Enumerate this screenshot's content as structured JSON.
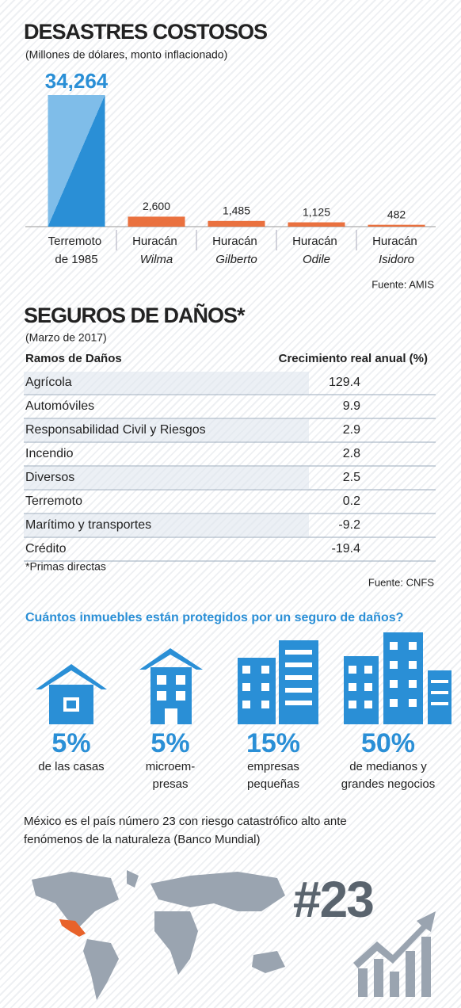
{
  "chart_data": {
    "type": "bar",
    "title": "DESASTRES COSTOSOS",
    "subtitle": "(Millones de dólares, monto inflacionado)",
    "categories": [
      "Terremoto de 1985",
      "Huracán Wilma",
      "Huracán Gilberto",
      "Huracán Odile",
      "Huracán Isidoro"
    ],
    "values": [
      34264,
      2600,
      1485,
      1125,
      482
    ],
    "value_labels": [
      "34,264",
      "2,600",
      "1,485",
      "1,125",
      "482"
    ],
    "colors": [
      "#2a8fd6",
      "#e8622a",
      "#e8622a",
      "#e8622a",
      "#e8622a"
    ],
    "source": "Fuente: AMIS"
  },
  "table": {
    "title": "SEGUROS DE DAÑOS*",
    "subtitle": "(Marzo de 2017)",
    "header": [
      "Ramos de Daños",
      "Crecimiento real anual (%)"
    ],
    "rows": [
      [
        "Agrícola",
        129.4
      ],
      [
        "Automóviles",
        9.9
      ],
      [
        "Responsabilidad Civil y Riesgos",
        2.9
      ],
      [
        "Incendio",
        2.8
      ],
      [
        "Diversos",
        2.5
      ],
      [
        "Terremoto",
        0.2
      ],
      [
        "Marítimo y transportes",
        -9.2
      ],
      [
        "Crédito",
        -19.4
      ]
    ],
    "note": "*Primas directas",
    "source": "Fuente: CNFS"
  },
  "protection": {
    "title": "Cuántos inmuebles están protegidos por un seguro de daños?",
    "items": [
      {
        "pct": "5%",
        "label": [
          "de las casas"
        ]
      },
      {
        "pct": "5%",
        "label": [
          "microem-",
          "presas"
        ]
      },
      {
        "pct": "15%",
        "label": [
          "empresas",
          "pequeñas"
        ]
      },
      {
        "pct": "50%",
        "label": [
          "de medianos y",
          "grandes negocios"
        ]
      }
    ]
  },
  "ranking": {
    "text": [
      "México es el país número 23 con riesgo catastrófico alto ante",
      "fenómenos de la naturaleza (Banco Mundial)"
    ],
    "rank": "#23"
  }
}
